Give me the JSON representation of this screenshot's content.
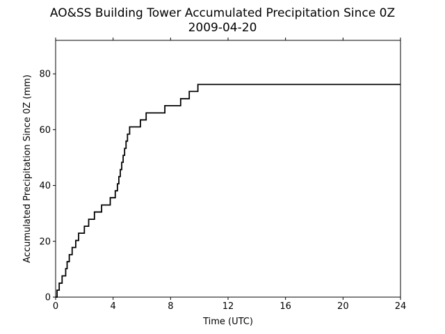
{
  "chart_data": {
    "type": "line",
    "title": "AO&SS Building Tower Accumulated Precipitation Since 0Z",
    "subtitle": "2009-04-20",
    "xlabel": "Time (UTC)",
    "ylabel": "Accumulated Precipitation Since 0Z (mm)",
    "xlim": [
      0,
      24
    ],
    "ylim": [
      0,
      92
    ],
    "xticks": [
      0,
      4,
      8,
      12,
      16,
      20,
      24
    ],
    "xtick_labels": [
      "0",
      "4",
      "8",
      "12",
      "16",
      "20",
      "24"
    ],
    "yticks": [
      0,
      20,
      40,
      60,
      80
    ],
    "ytick_labels": [
      "0",
      "20",
      "40",
      "60",
      "80"
    ],
    "grid": false,
    "series": [
      {
        "step": "post",
        "color": "#000000",
        "x": [
          0.0,
          0.1,
          0.25,
          0.45,
          0.7,
          0.8,
          0.95,
          1.15,
          1.4,
          1.6,
          2.0,
          2.3,
          2.7,
          3.2,
          3.8,
          4.15,
          4.3,
          4.4,
          4.5,
          4.6,
          4.7,
          4.8,
          4.9,
          5.0,
          5.15,
          5.35,
          5.9,
          6.3,
          7.6,
          8.7,
          9.3,
          9.9,
          24.0
        ],
        "y": [
          0.0,
          2.5,
          5.0,
          7.6,
          10.2,
          12.7,
          15.2,
          17.8,
          20.3,
          22.9,
          25.4,
          27.9,
          30.5,
          33.0,
          35.6,
          38.1,
          40.6,
          43.2,
          45.7,
          48.3,
          50.8,
          53.3,
          55.9,
          58.4,
          61.0,
          61.0,
          63.5,
          66.0,
          68.6,
          71.1,
          73.7,
          76.2,
          76.2
        ]
      }
    ]
  }
}
